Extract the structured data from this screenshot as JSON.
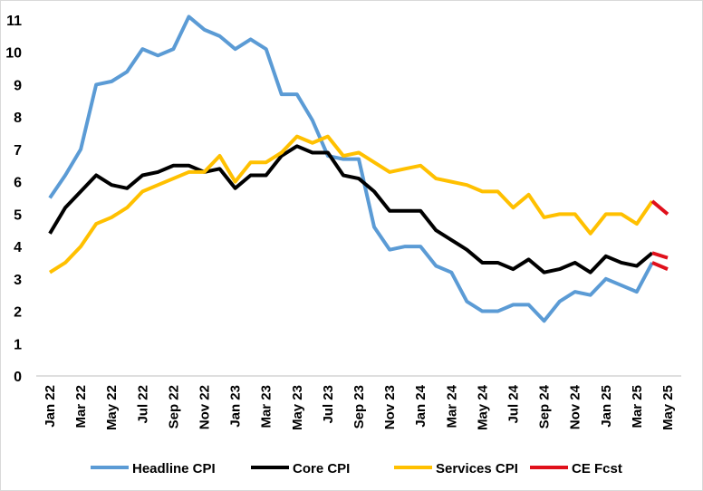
{
  "chart_data": {
    "type": "line",
    "title": "",
    "xlabel": "",
    "ylabel": "",
    "ylim": [
      0,
      11
    ],
    "yticks": [
      0,
      1,
      2,
      3,
      4,
      5,
      6,
      7,
      8,
      9,
      10,
      11
    ],
    "grid": false,
    "legend_position": "bottom",
    "categories": [
      "Jan 22",
      "Feb 22",
      "Mar 22",
      "Apr 22",
      "May 22",
      "Jun 22",
      "Jul 22",
      "Aug 22",
      "Sep 22",
      "Oct 22",
      "Nov 22",
      "Dec 22",
      "Jan 23",
      "Feb 23",
      "Mar 23",
      "Apr 23",
      "May 23",
      "Jun 23",
      "Jul 23",
      "Aug 23",
      "Sep 23",
      "Oct 23",
      "Nov 23",
      "Dec 23",
      "Jan 24",
      "Feb 24",
      "Mar 24",
      "Apr 24",
      "May 24",
      "Jun 24",
      "Jul 24",
      "Aug 24",
      "Sep 24",
      "Oct 24",
      "Nov 24",
      "Dec 24",
      "Jan 25",
      "Feb 25",
      "Mar 25",
      "Apr 25",
      "May 25"
    ],
    "tick_labels": [
      "Jan 22",
      "Mar 22",
      "May 22",
      "Jul 22",
      "Sep 22",
      "Nov 22",
      "Jan 23",
      "Mar 23",
      "May 23",
      "Jul 23",
      "Sep 23",
      "Nov 23",
      "Jan 24",
      "Mar 24",
      "May 24",
      "Jul 24",
      "Sep 24",
      "Nov 24",
      "Jan 25",
      "Mar 25",
      "May 25"
    ],
    "series": [
      {
        "name": "Headline CPI",
        "color": "#5b9bd5",
        "values": [
          5.5,
          6.2,
          7.0,
          9.0,
          9.1,
          9.4,
          10.1,
          9.9,
          10.1,
          11.1,
          10.7,
          10.5,
          10.1,
          10.4,
          10.1,
          8.7,
          8.7,
          7.9,
          6.8,
          6.7,
          6.7,
          4.6,
          3.9,
          4.0,
          4.0,
          3.4,
          3.2,
          2.3,
          2.0,
          2.0,
          2.2,
          2.2,
          1.7,
          2.3,
          2.6,
          2.5,
          3.0,
          2.8,
          2.6,
          3.5,
          null
        ]
      },
      {
        "name": "Core CPI",
        "color": "#000000",
        "values": [
          4.4,
          5.2,
          5.7,
          6.2,
          5.9,
          5.8,
          6.2,
          6.3,
          6.5,
          6.5,
          6.3,
          6.4,
          5.8,
          6.2,
          6.2,
          6.8,
          7.1,
          6.9,
          6.9,
          6.2,
          6.1,
          5.7,
          5.1,
          5.1,
          5.1,
          4.5,
          4.2,
          3.9,
          3.5,
          3.5,
          3.3,
          3.6,
          3.2,
          3.3,
          3.5,
          3.2,
          3.7,
          3.5,
          3.4,
          3.8,
          null
        ]
      },
      {
        "name": "Services CPI",
        "color": "#ffc000",
        "values": [
          3.2,
          3.5,
          4.0,
          4.7,
          4.9,
          5.2,
          5.7,
          5.9,
          6.1,
          6.3,
          6.3,
          6.8,
          6.0,
          6.6,
          6.6,
          6.9,
          7.4,
          7.2,
          7.4,
          6.8,
          6.9,
          6.6,
          6.3,
          6.4,
          6.5,
          6.1,
          6.0,
          5.9,
          5.7,
          5.7,
          5.2,
          5.6,
          4.9,
          5.0,
          5.0,
          4.4,
          5.0,
          5.0,
          4.7,
          5.4,
          null
        ]
      },
      {
        "name": "CE Fcst",
        "color": "#e0101b",
        "segments": [
          {
            "from": "Apr 25",
            "to": "May 25",
            "values": [
              5.4,
              5.0
            ]
          },
          {
            "from": "Apr 25",
            "to": "May 25",
            "values": [
              3.8,
              3.65
            ]
          },
          {
            "from": "Apr 25",
            "to": "May 25",
            "values": [
              3.5,
              3.3
            ]
          }
        ]
      }
    ]
  }
}
